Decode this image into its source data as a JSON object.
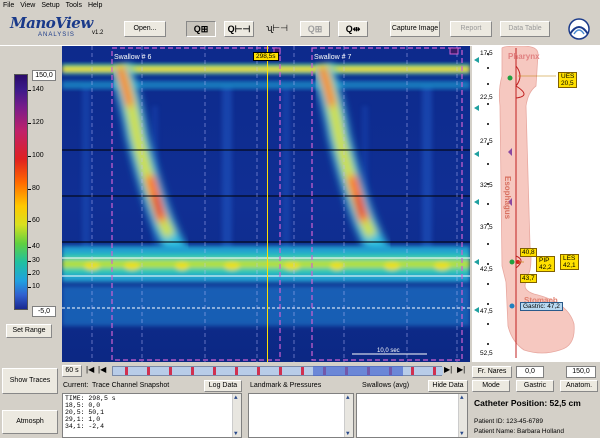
{
  "menu": [
    "File",
    "View",
    "Setup",
    "Tools",
    "Help"
  ],
  "logo": {
    "name": "ManoView",
    "sub": "ANALYSIS",
    "version": "v1.2"
  },
  "toolbar": {
    "open": "Open...",
    "capture": "Capture Image",
    "report": "Report",
    "data_table": "Data Table",
    "zoom_buttons": [
      "zoom-in-horizontal",
      "zoom-in-range",
      "zoom-cursor-range",
      "zoom-box",
      "zoom-fit"
    ]
  },
  "colorscale": {
    "max": "150,0",
    "min": "-5,0",
    "ticks": [
      "140",
      "120",
      "100",
      "80",
      "60",
      "40",
      "30",
      "20",
      "10"
    ]
  },
  "plot": {
    "swallow_labels": [
      "Swallow # 6",
      "Swallow # 7"
    ],
    "time_marker": "298,5s",
    "scale_bar": "10,0 sec"
  },
  "anatomy": {
    "depth_ticks": [
      "17,5",
      "22,5",
      "27,5",
      "32,5",
      "37,5",
      "42,5",
      "47,5",
      "52,5"
    ],
    "region_pharynx": "Pharynx",
    "region_esophagus": "Esophagus",
    "region_stomach": "Stomach",
    "ues_label": "UES",
    "ues_value": "20,5",
    "les_label": "LES",
    "les_value": "42,1",
    "pip_label": "PIP",
    "pip_value": "42,2",
    "marker_top": "40,8",
    "marker_bottom": "43,7",
    "gastric_label": "Gastric: 47,2"
  },
  "left": {
    "set_range": "Set Range",
    "show_traces": "Show Traces",
    "atmosph": "Atmosph"
  },
  "timeline": {
    "window": "60 s"
  },
  "bottom": {
    "current_label": "Current:",
    "snapshot_title": "Trace Channel Snapshot",
    "log_data": "Log Data",
    "landmarks": "Landmark & Pressures",
    "swallows": "Swallows (avg)",
    "hide_data": "Hide Data",
    "snapshot_lines": [
      "TIME: 298,5 s",
      "18,5: 0,0",
      "20,5: 50,1",
      "29,1: 1,0",
      "34,1: -2,4"
    ]
  },
  "right_controls": {
    "fr_nares": "Fr. Nares",
    "nares_value": "0,0",
    "range_value": "150,0",
    "mode": "Mode",
    "gastric": "Gastric",
    "anatom": "Anatom.",
    "catheter_position": "Catheter Position: 52,5 cm",
    "patient_id": "Patient ID: 123-45-6789",
    "patient_name": "Patient Name: Barbara Holland"
  }
}
